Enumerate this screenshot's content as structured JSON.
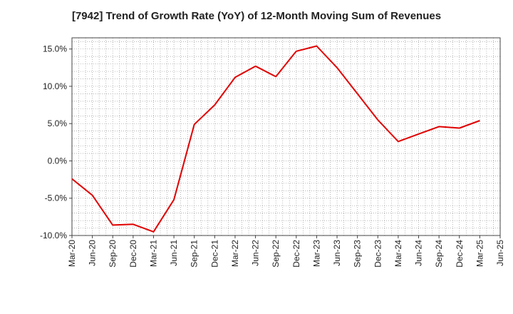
{
  "chart_data": {
    "type": "line",
    "title": "[7942]  Trend of Growth Rate (YoY) of 12-Month Moving Sum of Revenues",
    "xlabel": "",
    "ylabel": "",
    "x_tick_labels": [
      "Mar-20",
      "Jun-20",
      "Sep-20",
      "Dec-20",
      "Mar-21",
      "Jun-21",
      "Sep-21",
      "Dec-21",
      "Mar-22",
      "Jun-22",
      "Sep-22",
      "Dec-22",
      "Mar-23",
      "Jun-23",
      "Sep-23",
      "Dec-23",
      "Mar-24",
      "Jun-24",
      "Sep-24",
      "Dec-24",
      "Mar-25",
      "Jun-25"
    ],
    "y_ticks": [
      15.0,
      10.0,
      5.0,
      0.0,
      -5.0,
      -10.0
    ],
    "y_tick_labels": [
      "15.0%",
      "10.0%",
      "5.0%",
      "0.0%",
      "-5.0%",
      "-10.0%"
    ],
    "ylim": [
      -10.0,
      16.5
    ],
    "grid": true,
    "color": "#e00000",
    "series": [
      {
        "x": [
          "Mar-20",
          "Jun-20",
          "Sep-20",
          "Dec-20",
          "Mar-21",
          "Jun-21",
          "Sep-21",
          "Dec-21",
          "Mar-22",
          "Jun-22",
          "Sep-22",
          "Dec-22",
          "Mar-23",
          "Jun-23",
          "Sep-23",
          "Dec-23",
          "Mar-24",
          "Jun-24",
          "Sep-24",
          "Dec-24",
          "Mar-25"
        ],
        "values": [
          -2.4,
          -4.6,
          -8.6,
          -8.5,
          -9.5,
          -5.2,
          4.9,
          7.5,
          11.2,
          12.7,
          11.3,
          14.7,
          15.4,
          12.5,
          9.0,
          5.5,
          2.6,
          3.6,
          4.6,
          4.4,
          5.4
        ]
      }
    ]
  }
}
